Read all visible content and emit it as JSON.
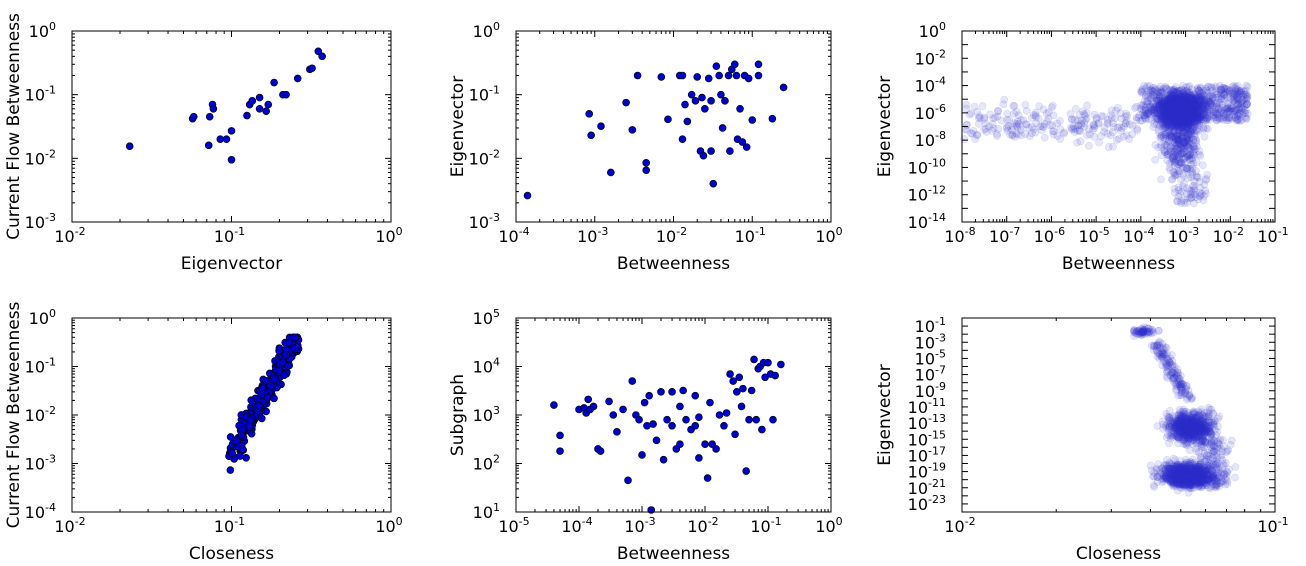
{
  "colors": {
    "point_fill": "#0000cc",
    "point_edge": "#000000",
    "transparent_fill": "#3333cc"
  },
  "chart_data": [
    {
      "type": "scatter",
      "log_x": true,
      "log_y": true,
      "xlabel": "Eigenvector",
      "ylabel": "Current Flow Betweenness",
      "xlim": [
        0.01,
        1
      ],
      "ylim": [
        0.001,
        1
      ],
      "xticks": [
        -2,
        -1,
        0
      ],
      "yticks": [
        -3,
        -2,
        -1,
        0
      ],
      "marker": "solid",
      "points": [
        [
          0.023,
          0.0155
        ],
        [
          0.057,
          0.042
        ],
        [
          0.058,
          0.045
        ],
        [
          0.072,
          0.016
        ],
        [
          0.073,
          0.045
        ],
        [
          0.076,
          0.07
        ],
        [
          0.077,
          0.06
        ],
        [
          0.085,
          0.02
        ],
        [
          0.093,
          0.02
        ],
        [
          0.1,
          0.027
        ],
        [
          0.1,
          0.0095
        ],
        [
          0.125,
          0.047
        ],
        [
          0.13,
          0.07
        ],
        [
          0.135,
          0.08
        ],
        [
          0.15,
          0.09
        ],
        [
          0.15,
          0.06
        ],
        [
          0.165,
          0.055
        ],
        [
          0.17,
          0.07
        ],
        [
          0.185,
          0.155
        ],
        [
          0.21,
          0.1
        ],
        [
          0.22,
          0.1
        ],
        [
          0.26,
          0.18
        ],
        [
          0.31,
          0.25
        ],
        [
          0.32,
          0.26
        ],
        [
          0.35,
          0.48
        ],
        [
          0.37,
          0.4
        ]
      ]
    },
    {
      "type": "scatter",
      "log_x": true,
      "log_y": true,
      "xlabel": "Betweenness",
      "ylabel": "Eigenvector",
      "xlim": [
        0.0001,
        1
      ],
      "ylim": [
        0.001,
        1
      ],
      "xticks": [
        -4,
        -3,
        -2,
        -1,
        0
      ],
      "yticks": [
        -3,
        -2,
        -1,
        0
      ],
      "marker": "solid",
      "points": [
        [
          0.00014,
          0.0026
        ],
        [
          0.00085,
          0.05
        ],
        [
          0.0009,
          0.023
        ],
        [
          0.0012,
          0.032
        ],
        [
          0.0016,
          0.006
        ],
        [
          0.0025,
          0.075
        ],
        [
          0.003,
          0.028
        ],
        [
          0.0035,
          0.2
        ],
        [
          0.0045,
          0.0085
        ],
        [
          0.0045,
          0.0065
        ],
        [
          0.007,
          0.19
        ],
        [
          0.0085,
          0.041
        ],
        [
          0.012,
          0.2
        ],
        [
          0.013,
          0.2
        ],
        [
          0.013,
          0.02
        ],
        [
          0.014,
          0.07
        ],
        [
          0.015,
          0.038
        ],
        [
          0.017,
          0.1
        ],
        [
          0.019,
          0.08
        ],
        [
          0.02,
          0.19
        ],
        [
          0.022,
          0.013
        ],
        [
          0.023,
          0.09
        ],
        [
          0.024,
          0.011
        ],
        [
          0.025,
          0.06
        ],
        [
          0.028,
          0.18
        ],
        [
          0.03,
          0.08
        ],
        [
          0.03,
          0.013
        ],
        [
          0.032,
          0.004
        ],
        [
          0.035,
          0.28
        ],
        [
          0.038,
          0.2
        ],
        [
          0.04,
          0.1
        ],
        [
          0.042,
          0.03
        ],
        [
          0.045,
          0.08
        ],
        [
          0.05,
          0.2
        ],
        [
          0.052,
          0.013
        ],
        [
          0.055,
          0.25
        ],
        [
          0.06,
          0.3
        ],
        [
          0.063,
          0.2
        ],
        [
          0.065,
          0.02
        ],
        [
          0.07,
          0.06
        ],
        [
          0.075,
          0.018
        ],
        [
          0.08,
          0.2
        ],
        [
          0.085,
          0.015
        ],
        [
          0.09,
          0.18
        ],
        [
          0.1,
          0.04
        ],
        [
          0.12,
          0.3
        ],
        [
          0.12,
          0.2
        ],
        [
          0.18,
          0.042
        ],
        [
          0.25,
          0.13
        ]
      ]
    },
    {
      "type": "scatter",
      "log_x": true,
      "log_y": true,
      "xlabel": "Betweenness",
      "ylabel": "Eigenvector",
      "xlim": [
        1e-08,
        0.1
      ],
      "ylim": [
        1e-14,
        1
      ],
      "xticks": [
        -8,
        -7,
        -6,
        -5,
        -4,
        -3,
        -2,
        -1
      ],
      "yticks": [
        -14,
        -12,
        -10,
        -8,
        -6,
        -4,
        -2,
        0
      ],
      "marker": "transparent",
      "cloud": "dense cloud of several thousand semi-transparent points concentrated at betweenness 1e-4 to 3e-2, eigenvector 1e-10 to 1e-3, with a sparse tail toward betweenness 1e-8"
    },
    {
      "type": "scatter",
      "log_x": true,
      "log_y": true,
      "xlabel": "Closeness",
      "ylabel": "Current Flow Betweenness",
      "xlim": [
        0.01,
        1
      ],
      "ylim": [
        0.0001,
        1
      ],
      "xticks": [
        -2,
        -1,
        0
      ],
      "yticks": [
        -4,
        -3,
        -2,
        -1,
        0
      ],
      "marker": "solid",
      "cloud": "about 250 points along a steep band from closeness ~0.1 (current flow ~0.001-0.01) to closeness ~0.25 (current flow ~0.4)"
    },
    {
      "type": "scatter",
      "log_x": true,
      "log_y": true,
      "xlabel": "Betweenness",
      "ylabel": "Subgraph",
      "xlim": [
        1e-05,
        1
      ],
      "ylim": [
        10,
        100000
      ],
      "xticks": [
        -5,
        -4,
        -3,
        -2,
        -1,
        0
      ],
      "yticks": [
        1,
        2,
        3,
        4,
        5
      ],
      "marker": "solid",
      "points": [
        [
          4e-05,
          1600
        ],
        [
          5e-05,
          380
        ],
        [
          5e-05,
          180
        ],
        [
          0.0001,
          1300
        ],
        [
          0.00012,
          1400
        ],
        [
          0.00013,
          1100
        ],
        [
          0.00014,
          2100
        ],
        [
          0.00015,
          1300
        ],
        [
          0.00017,
          1500
        ],
        [
          0.0002,
          200
        ],
        [
          0.00022,
          180
        ],
        [
          0.0003,
          1900
        ],
        [
          0.00035,
          1000
        ],
        [
          0.0004,
          450
        ],
        [
          0.0005,
          1300
        ],
        [
          0.0006,
          45
        ],
        [
          0.0007,
          5000
        ],
        [
          0.0008,
          1000
        ],
        [
          0.0009,
          800
        ],
        [
          0.001,
          150
        ],
        [
          0.0011,
          1800
        ],
        [
          0.0012,
          600
        ],
        [
          0.0013,
          2500
        ],
        [
          0.0014,
          11
        ],
        [
          0.0015,
          650
        ],
        [
          0.0017,
          300
        ],
        [
          0.002,
          3000
        ],
        [
          0.0022,
          120
        ],
        [
          0.0025,
          800
        ],
        [
          0.003,
          600
        ],
        [
          0.003,
          3000
        ],
        [
          0.0035,
          200
        ],
        [
          0.004,
          1500
        ],
        [
          0.004,
          250
        ],
        [
          0.0045,
          3200
        ],
        [
          0.005,
          800
        ],
        [
          0.006,
          500
        ],
        [
          0.007,
          2500
        ],
        [
          0.007,
          600
        ],
        [
          0.008,
          900
        ],
        [
          0.008,
          130
        ],
        [
          0.01,
          250
        ],
        [
          0.011,
          50
        ],
        [
          0.012,
          1800
        ],
        [
          0.013,
          250
        ],
        [
          0.015,
          200
        ],
        [
          0.017,
          1000
        ],
        [
          0.02,
          600
        ],
        [
          0.022,
          1100
        ],
        [
          0.025,
          7000
        ],
        [
          0.028,
          5000
        ],
        [
          0.03,
          400
        ],
        [
          0.032,
          3000
        ],
        [
          0.035,
          6000
        ],
        [
          0.038,
          1500
        ],
        [
          0.04,
          3500
        ],
        [
          0.045,
          70
        ],
        [
          0.05,
          800
        ],
        [
          0.055,
          3200
        ],
        [
          0.06,
          14000
        ],
        [
          0.065,
          800
        ],
        [
          0.07,
          9000
        ],
        [
          0.075,
          10000
        ],
        [
          0.08,
          500
        ],
        [
          0.085,
          12000
        ],
        [
          0.09,
          6000
        ],
        [
          0.1,
          12000
        ],
        [
          0.11,
          7000
        ],
        [
          0.12,
          800
        ],
        [
          0.13,
          6500
        ],
        [
          0.16,
          11000
        ]
      ]
    },
    {
      "type": "scatter",
      "log_x": true,
      "log_y": true,
      "xlabel": "Closeness",
      "ylabel": "Eigenvector",
      "xlim": [
        0.01,
        0.1
      ],
      "ylim": [
        1e-24,
        1
      ],
      "xticks": [
        -2,
        -1
      ],
      "yticks": [
        -1,
        -3,
        -5,
        -7,
        -9,
        -11,
        -13,
        -15,
        -17,
        -19,
        -21,
        -23
      ],
      "marker": "transparent",
      "cloud": "semi-transparent points: a small cluster near closeness 0.04 with eigenvector ~0.01-0.1, a thin arc down to a large dense blob at closeness 0.04-0.08 with eigenvector 1e-22 to 1e-11"
    }
  ]
}
